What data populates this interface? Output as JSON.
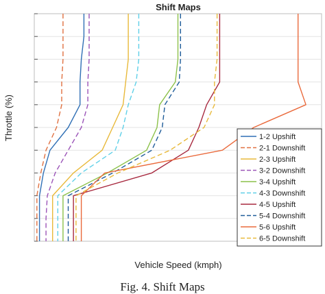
{
  "caption": "Fig. 4. Shift Maps",
  "chart_data": {
    "type": "line",
    "title": "Shift Maps",
    "xlabel": "Vehicle Speed (kmph)",
    "ylabel": "Throttle (%)",
    "ylim": [
      0,
      100
    ],
    "grid": true,
    "legend_position": "bottom-right",
    "y_ticks": [
      0,
      10,
      20,
      30,
      40,
      50,
      60,
      70,
      80,
      90,
      100
    ],
    "series": [
      {
        "name": "1-2 Upshift",
        "color": "#2f6fb5",
        "dash": "solid",
        "x": [
          19,
          19,
          18,
          17.5,
          17.5,
          13,
          6,
          3.5,
          2,
          2,
          2
        ],
        "y": [
          100,
          90,
          80,
          70,
          60,
          50,
          40,
          30,
          20,
          10,
          0
        ]
      },
      {
        "name": "2-1 Downshift",
        "color": "#e07040",
        "dash": "dash",
        "x": [
          11,
          11,
          11,
          10.5,
          10.5,
          8.5,
          4.5,
          2.5,
          1,
          1,
          1
        ],
        "y": [
          100,
          90,
          80,
          70,
          60,
          50,
          40,
          30,
          20,
          10,
          0
        ]
      },
      {
        "name": "2-3 Upshift",
        "color": "#e8b93a",
        "dash": "solid",
        "x": [
          36,
          36,
          36,
          35,
          34,
          30,
          26,
          15,
          7,
          7,
          7
        ],
        "y": [
          100,
          90,
          80,
          70,
          60,
          50,
          40,
          30,
          20,
          10,
          0
        ]
      },
      {
        "name": "3-2 Downshift",
        "color": "#9b54b8",
        "dash": "dash",
        "x": [
          21,
          21,
          21,
          20.5,
          20.5,
          18,
          13,
          8,
          5,
          4.5,
          4.5
        ],
        "y": [
          100,
          90,
          80,
          70,
          60,
          50,
          40,
          30,
          20,
          10,
          0
        ]
      },
      {
        "name": "3-4 Upshift",
        "color": "#8cc14a",
        "dash": "solid",
        "x": [
          55,
          55,
          55,
          54,
          48,
          47,
          43,
          28,
          11,
          11,
          11
        ],
        "y": [
          100,
          90,
          80,
          70,
          60,
          50,
          40,
          30,
          20,
          10,
          0
        ]
      },
      {
        "name": "4-3 Downshift",
        "color": "#5fd0e8",
        "dash": "dash",
        "x": [
          40,
          40,
          40,
          39,
          36,
          34,
          31,
          18,
          9,
          9,
          9
        ],
        "y": [
          100,
          90,
          80,
          70,
          60,
          50,
          40,
          30,
          20,
          10,
          0
        ]
      },
      {
        "name": "4-5 Upshift",
        "color": "#a7283e",
        "dash": "solid",
        "x": [
          71,
          71,
          71,
          71,
          66,
          63,
          59,
          45,
          15,
          15,
          15
        ],
        "y": [
          100,
          90,
          80,
          70,
          60,
          50,
          40,
          30,
          20,
          10,
          0
        ]
      },
      {
        "name": "5-4 Downshift",
        "color": "#1f5c99",
        "dash": "dash",
        "x": [
          56,
          56,
          56,
          55.5,
          50,
          49,
          45,
          30,
          13,
          13,
          13
        ],
        "y": [
          100,
          90,
          80,
          70,
          60,
          50,
          40,
          30,
          20,
          10,
          0
        ]
      },
      {
        "name": "5-6 Upshift",
        "color": "#ea6a3c",
        "dash": "solid",
        "x": [
          101,
          101,
          101,
          101,
          104,
          84,
          72,
          27,
          18,
          18,
          18
        ],
        "y": [
          100,
          90,
          80,
          70,
          60,
          50,
          40,
          30,
          20,
          10,
          0
        ]
      },
      {
        "name": "6-5 Downshift",
        "color": "#e8b93a",
        "dash": "dash",
        "x": [
          70,
          70,
          70,
          69,
          69,
          65,
          52,
          32,
          16,
          16,
          16
        ],
        "y": [
          100,
          90,
          80,
          70,
          60,
          50,
          40,
          30,
          20,
          10,
          0
        ]
      }
    ]
  }
}
